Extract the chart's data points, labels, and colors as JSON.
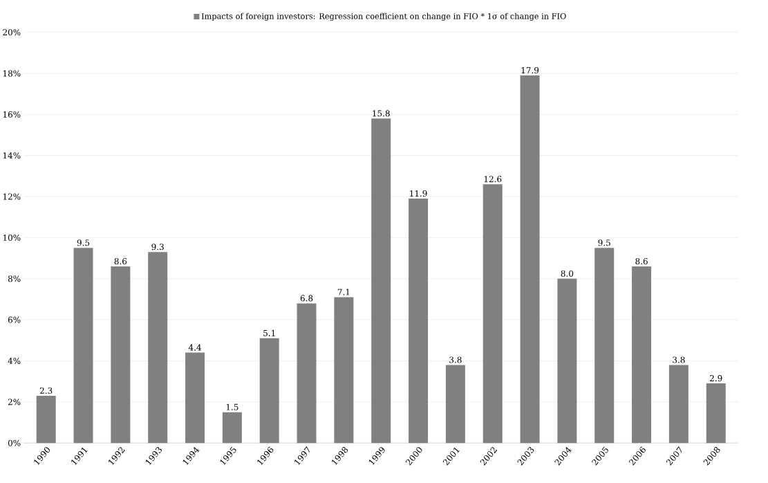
{
  "chart_data": {
    "type": "bar",
    "categories": [
      "1990",
      "1991",
      "1992",
      "1993",
      "1994",
      "1995",
      "1996",
      "1997",
      "1998",
      "1999",
      "2000",
      "2001",
      "2002",
      "2003",
      "2004",
      "2005",
      "2006",
      "2007",
      "2008"
    ],
    "series": [
      {
        "name": "Impacts of foreign investors: Regression coefficient on change in FIO * 1σ of change in FIO",
        "color": "#808080",
        "values": [
          2.3,
          9.5,
          8.6,
          9.3,
          4.4,
          1.5,
          5.1,
          6.8,
          7.1,
          15.8,
          11.9,
          3.8,
          12.6,
          17.9,
          8.0,
          9.5,
          8.6,
          3.8,
          2.9
        ],
        "value_labels": [
          "2.3",
          "9.5",
          "8.6",
          "9.3",
          "4.4",
          "1.5",
          "5.1",
          "6.8",
          "7.1",
          "15.8",
          "11.9",
          "3.8",
          "12.6",
          "17.9",
          "8.0",
          "9.5",
          "8.6",
          "3.8",
          "2.9"
        ]
      }
    ],
    "ylim": [
      0,
      20
    ],
    "yticks": [
      {
        "value": 0,
        "label": "0%"
      },
      {
        "value": 2,
        "label": "2%"
      },
      {
        "value": 4,
        "label": "4%"
      },
      {
        "value": 6,
        "label": "6%"
      },
      {
        "value": 8,
        "label": "8%"
      },
      {
        "value": 10,
        "label": "10%"
      },
      {
        "value": 12,
        "label": "12%"
      },
      {
        "value": 14,
        "label": "14%"
      },
      {
        "value": 16,
        "label": "16%"
      },
      {
        "value": 18,
        "label": "18%"
      },
      {
        "value": 20,
        "label": "20%"
      }
    ],
    "grid": "y",
    "legend": "top"
  }
}
